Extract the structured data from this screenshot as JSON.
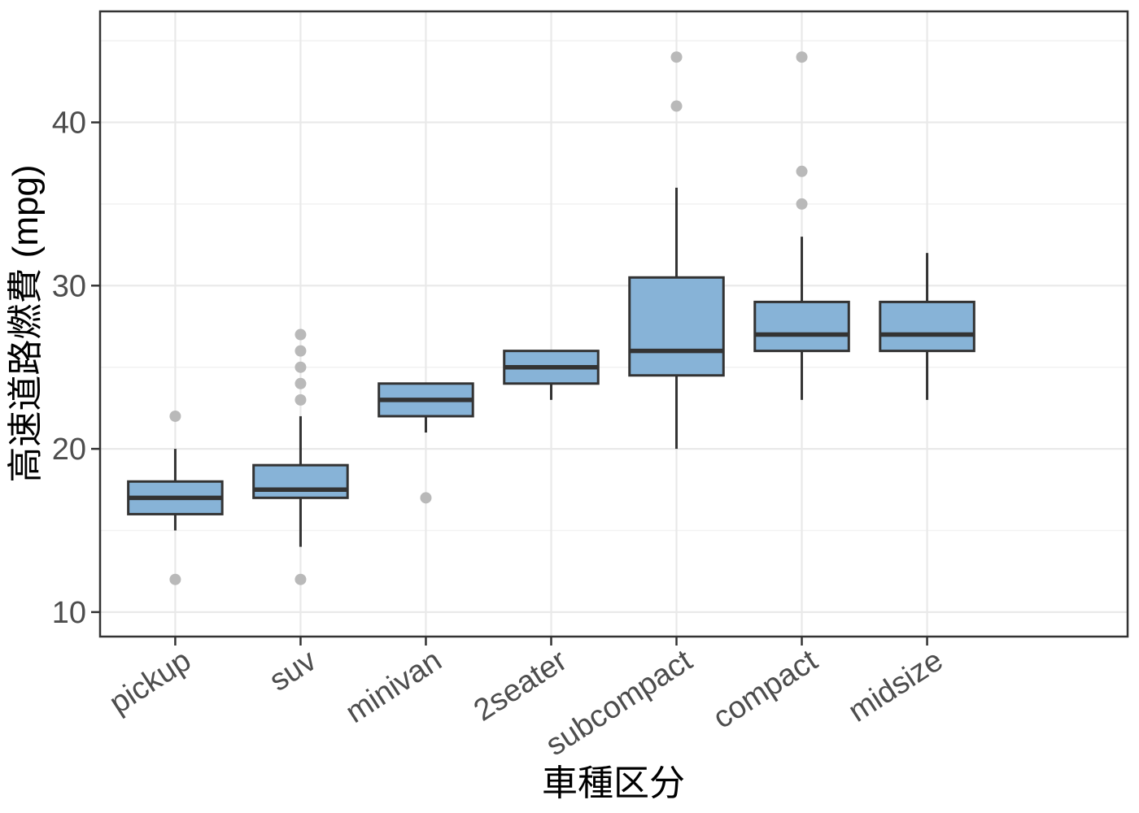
{
  "chart_data": {
    "type": "boxplot",
    "title": "",
    "xlabel": "車種区分",
    "ylabel": "高速道路燃費 (mpg)",
    "legend": "none",
    "grid": "on",
    "y_ticks": [
      10,
      20,
      30,
      40
    ],
    "y_tick_labels": [
      "10",
      "20",
      "30",
      "40"
    ],
    "y_minor_ticks": [
      15,
      25,
      35,
      45
    ],
    "ylim": [
      8.5,
      46.8
    ],
    "categories": [
      "pickup",
      "suv",
      "minivan",
      "2seater",
      "subcompact",
      "compact",
      "midsize"
    ],
    "series": [
      {
        "category": "pickup",
        "whisker_low": 15,
        "q1": 16,
        "median": 17,
        "q3": 18,
        "whisker_high": 20,
        "outliers": [
          12,
          22
        ]
      },
      {
        "category": "suv",
        "whisker_low": 14,
        "q1": 17,
        "median": 17.5,
        "q3": 19,
        "whisker_high": 22,
        "outliers": [
          12,
          23,
          24,
          25,
          26,
          27
        ]
      },
      {
        "category": "minivan",
        "whisker_low": 21,
        "q1": 22,
        "median": 23,
        "q3": 24,
        "whisker_high": 24,
        "outliers": [
          17
        ]
      },
      {
        "category": "2seater",
        "whisker_low": 23,
        "q1": 24,
        "median": 25,
        "q3": 26,
        "whisker_high": 26,
        "outliers": []
      },
      {
        "category": "subcompact",
        "whisker_low": 20,
        "q1": 24.5,
        "median": 26,
        "q3": 30.5,
        "whisker_high": 36,
        "outliers": [
          41,
          44
        ]
      },
      {
        "category": "compact",
        "whisker_low": 23,
        "q1": 26,
        "median": 27,
        "q3": 29,
        "whisker_high": 33,
        "outliers": [
          35,
          37,
          44
        ]
      },
      {
        "category": "midsize",
        "whisker_low": 23,
        "q1": 26,
        "median": 27,
        "q3": 29,
        "whisker_high": 32,
        "outliers": []
      }
    ],
    "colors": {
      "box_fill": "#87b3d7",
      "box_stroke": "#333333",
      "median_stroke": "#333333",
      "whisker_stroke": "#333333",
      "outlier_fill": "#b9b9b9",
      "grid_major": "#e9e9e9",
      "grid_minor": "#f2f2f2",
      "panel_border": "#333333",
      "tick_mark": "#333333",
      "tick_text": "#4d4d4d",
      "title_text": "#000000",
      "background": "#ffffff"
    }
  }
}
